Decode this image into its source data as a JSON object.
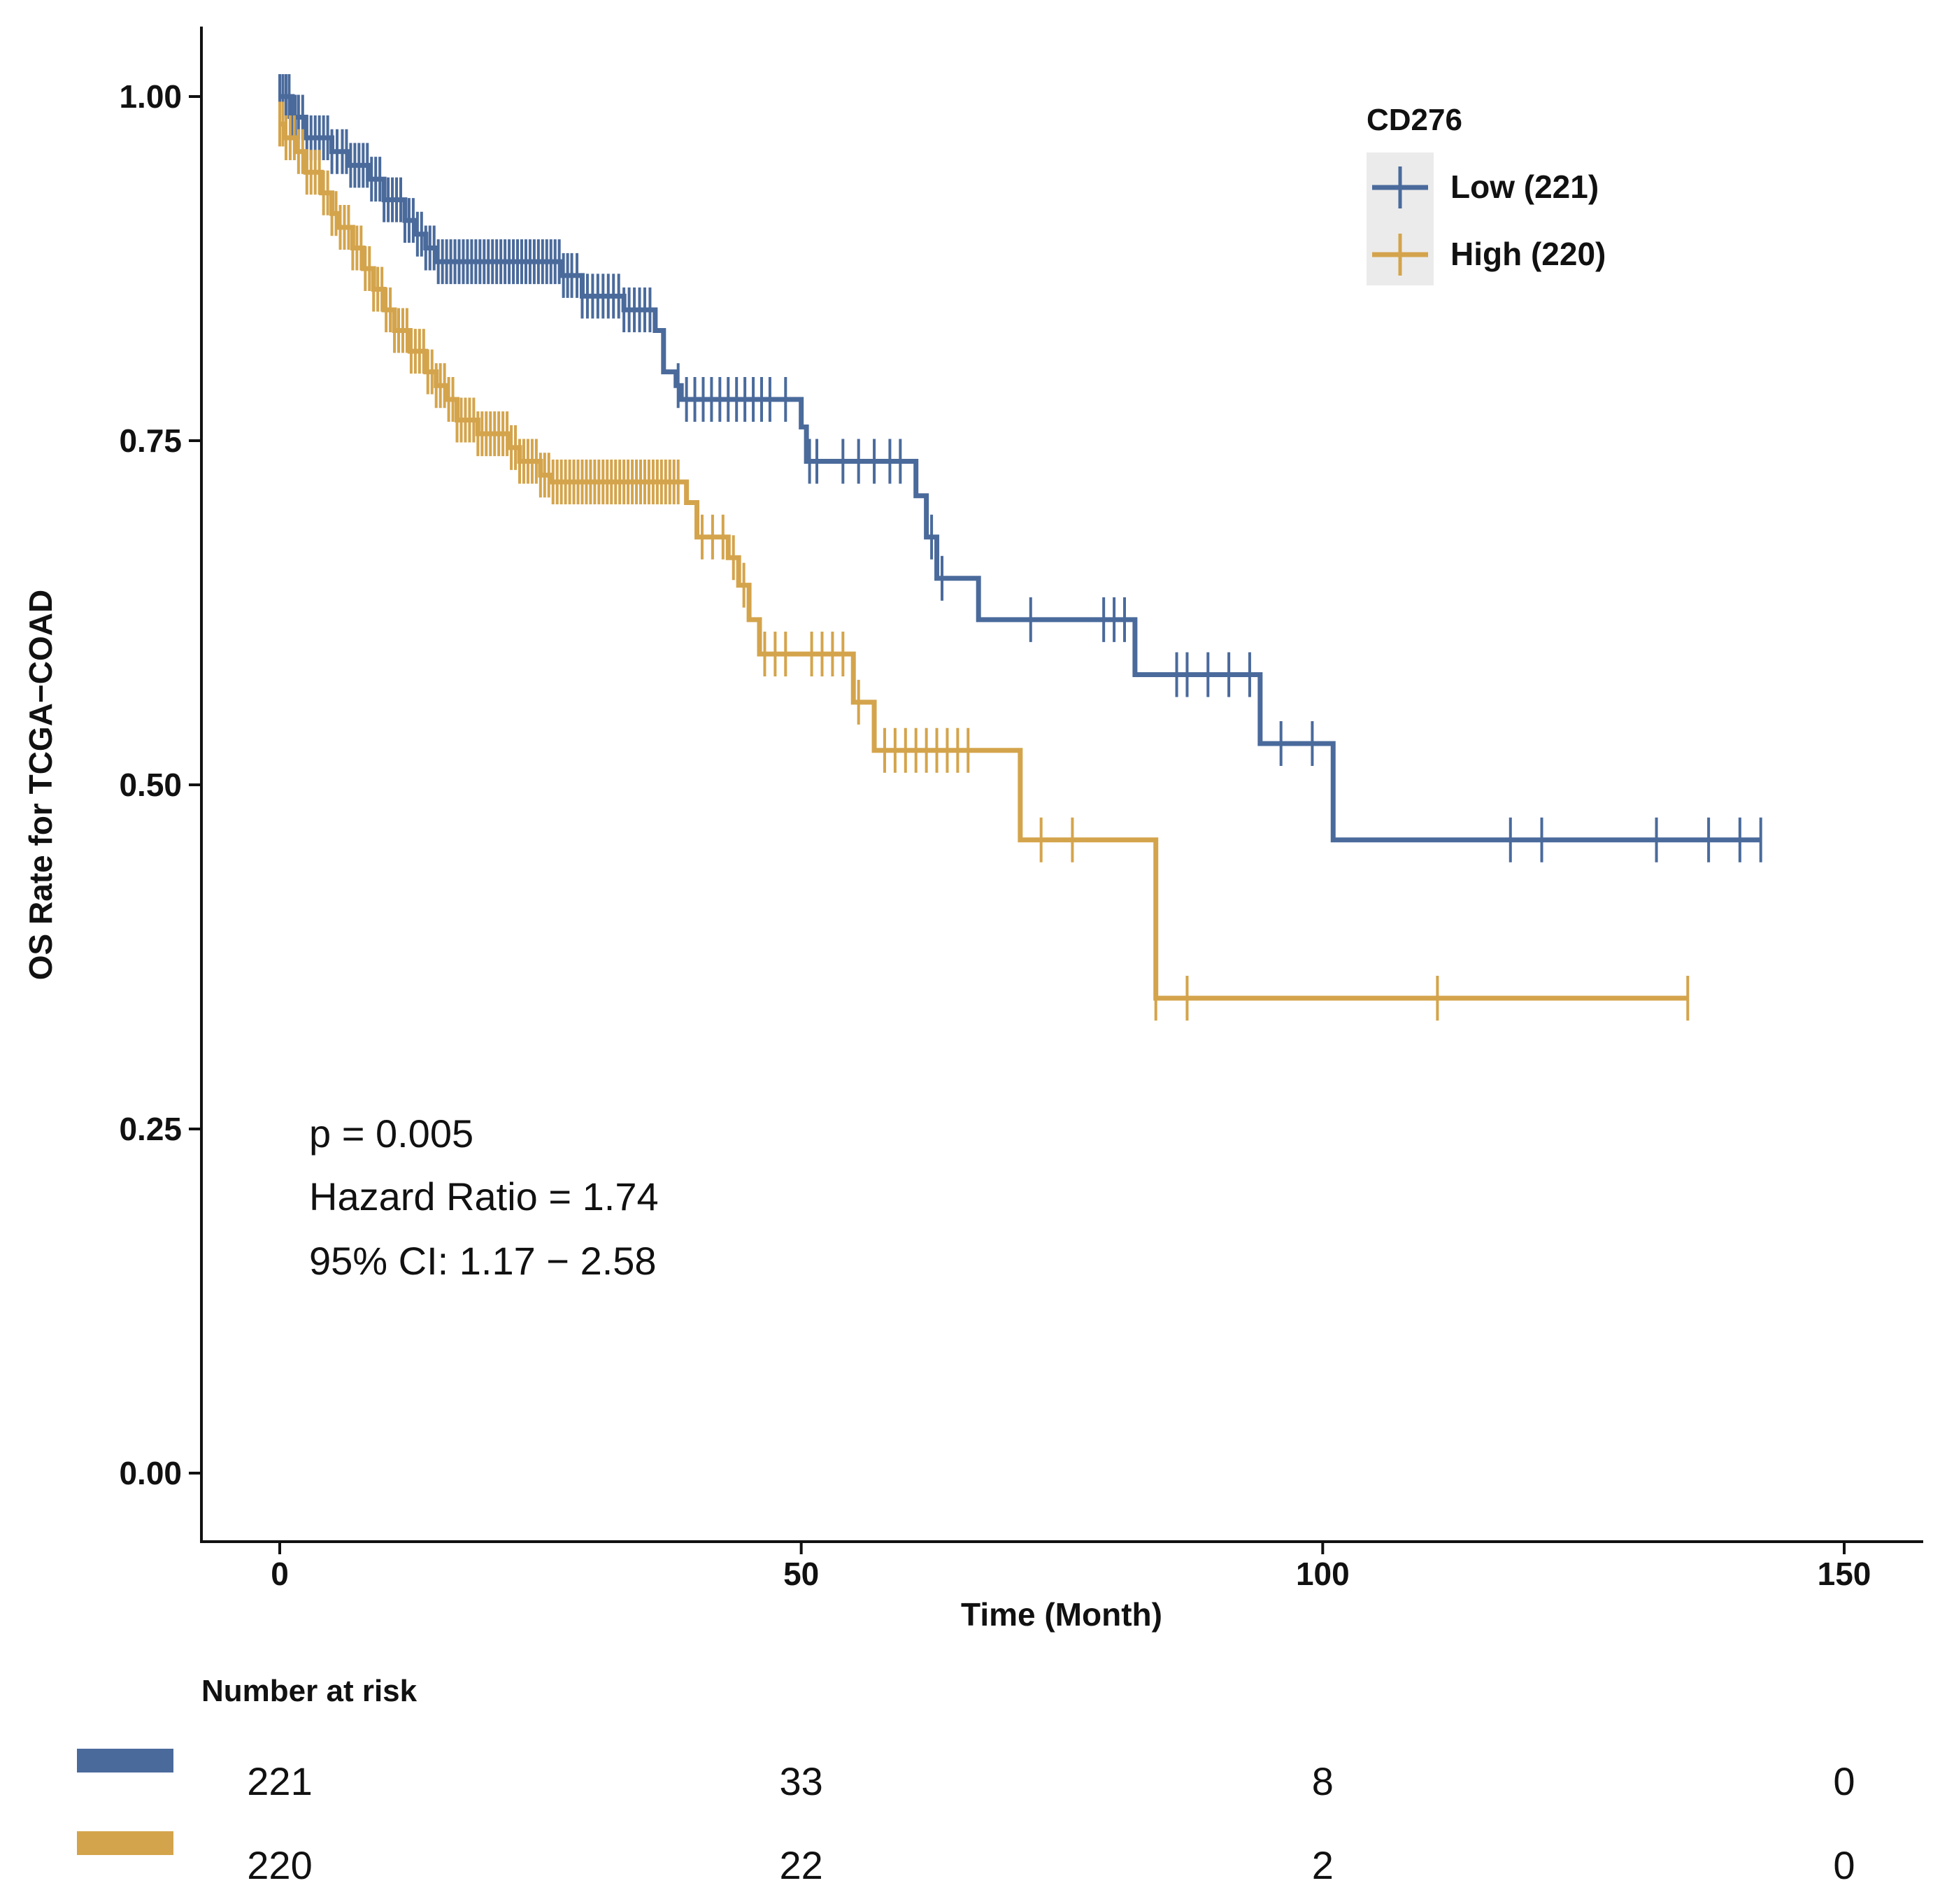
{
  "chart_data": {
    "type": "kaplan-meier",
    "ylabel": "OS Rate for TCGA−COAD",
    "xlabel": "Time (Month)",
    "xlim": [
      -6,
      156
    ],
    "ylim": [
      -0.05,
      1.05
    ],
    "x_ticks": [
      0,
      50,
      100,
      150
    ],
    "x_tick_labels": [
      "0",
      "50",
      "100",
      "150"
    ],
    "y_ticks": [
      0,
      0.25,
      0.5,
      0.75,
      1.0
    ],
    "y_tick_labels": [
      "0.00",
      "0.25",
      "0.50",
      "0.75",
      "1.00"
    ],
    "grid": false,
    "legend": {
      "title": "CD276",
      "position": "top-right",
      "labels": [
        "Low (221)",
        "High (220)"
      ]
    },
    "annotations": [
      "p = 0.005",
      "Hazard Ratio = 1.74",
      "95% CI: 1.17 − 2.58"
    ],
    "series": [
      {
        "name": "Low (221)",
        "color": "#4A6A9B",
        "steps": [
          [
            0,
            1.0
          ],
          [
            1.2,
            0.985
          ],
          [
            2.5,
            0.97
          ],
          [
            5,
            0.96
          ],
          [
            6.5,
            0.95
          ],
          [
            8.5,
            0.94
          ],
          [
            10,
            0.925
          ],
          [
            12,
            0.91
          ],
          [
            13,
            0.9
          ],
          [
            14,
            0.89
          ],
          [
            15,
            0.88
          ],
          [
            27,
            0.87
          ],
          [
            29,
            0.855
          ],
          [
            33,
            0.845
          ],
          [
            36,
            0.83
          ],
          [
            36.8,
            0.8
          ],
          [
            38,
            0.79
          ],
          [
            38.5,
            0.78
          ],
          [
            50,
            0.76
          ],
          [
            50.5,
            0.735
          ],
          [
            61,
            0.71
          ],
          [
            62,
            0.68
          ],
          [
            63,
            0.65
          ],
          [
            67,
            0.62
          ],
          [
            82,
            0.58
          ],
          [
            94,
            0.53
          ],
          [
            101,
            0.46
          ],
          [
            142,
            0.46
          ]
        ],
        "censors": [
          0,
          0.3,
          0.6,
          0.9,
          1.2,
          1.5,
          1.8,
          2.2,
          2.6,
          3,
          3.4,
          3.8,
          4.2,
          4.6,
          5,
          5.5,
          6,
          6.4,
          6.8,
          7.2,
          7.6,
          8,
          8.4,
          8.8,
          9.2,
          9.6,
          10,
          10.4,
          10.8,
          11.2,
          11.6,
          12,
          12.4,
          12.8,
          13.2,
          13.6,
          14,
          14.4,
          14.8,
          15.2,
          15.6,
          16,
          16.4,
          16.8,
          17.2,
          17.6,
          18,
          18.4,
          18.8,
          19.2,
          19.6,
          20,
          20.4,
          20.8,
          21.2,
          21.6,
          22,
          22.4,
          22.8,
          23.2,
          23.6,
          24,
          24.4,
          24.8,
          25.2,
          25.6,
          26,
          26.4,
          26.8,
          27.2,
          27.6,
          28,
          28.5,
          29,
          29.5,
          30,
          30.5,
          31,
          31.5,
          32,
          32.5,
          33,
          33.5,
          34,
          34.5,
          35,
          35.5,
          38.2,
          39,
          39.8,
          40.6,
          41.4,
          42.2,
          43,
          43.8,
          44.6,
          45.4,
          46.2,
          47,
          48.5,
          50.8,
          51.5,
          54,
          55.5,
          57,
          58.5,
          59.5,
          62.5,
          63.5,
          72,
          79,
          80,
          81,
          86,
          87,
          89,
          91,
          93,
          96,
          99,
          118,
          121,
          132,
          137,
          140,
          142
        ]
      },
      {
        "name": "High (220)",
        "color": "#D4A44C",
        "steps": [
          [
            0,
            0.98
          ],
          [
            0.5,
            0.97
          ],
          [
            1.5,
            0.96
          ],
          [
            2.5,
            0.945
          ],
          [
            4,
            0.93
          ],
          [
            5,
            0.915
          ],
          [
            5.5,
            0.905
          ],
          [
            7,
            0.89
          ],
          [
            8,
            0.875
          ],
          [
            9,
            0.86
          ],
          [
            10,
            0.845
          ],
          [
            11,
            0.83
          ],
          [
            12.5,
            0.815
          ],
          [
            14,
            0.8
          ],
          [
            15,
            0.79
          ],
          [
            16,
            0.78
          ],
          [
            17,
            0.765
          ],
          [
            19,
            0.755
          ],
          [
            22,
            0.745
          ],
          [
            23,
            0.735
          ],
          [
            25,
            0.725
          ],
          [
            26,
            0.72
          ],
          [
            39,
            0.705
          ],
          [
            40,
            0.68
          ],
          [
            43,
            0.665
          ],
          [
            44,
            0.645
          ],
          [
            45,
            0.62
          ],
          [
            46,
            0.595
          ],
          [
            55,
            0.56
          ],
          [
            57,
            0.525
          ],
          [
            71,
            0.46
          ],
          [
            84,
            0.345
          ],
          [
            135,
            0.345
          ]
        ],
        "censors": [
          0,
          0.3,
          0.6,
          1,
          1.4,
          1.8,
          2.2,
          2.6,
          3,
          3.4,
          3.8,
          4.2,
          4.6,
          5,
          5.4,
          5.8,
          6.2,
          6.6,
          7,
          7.4,
          7.8,
          8.2,
          8.6,
          9,
          9.4,
          9.8,
          10.2,
          10.6,
          11,
          11.4,
          11.8,
          12.2,
          12.6,
          13,
          13.4,
          13.8,
          14.2,
          14.6,
          15,
          15.4,
          15.8,
          16.2,
          16.6,
          17,
          17.4,
          17.8,
          18.2,
          18.6,
          19,
          19.4,
          19.8,
          20.2,
          20.6,
          21,
          21.4,
          21.8,
          22.2,
          22.6,
          23,
          23.4,
          23.8,
          24.2,
          24.6,
          25,
          25.4,
          25.8,
          26.2,
          26.6,
          27,
          27.4,
          27.8,
          28.2,
          28.6,
          29,
          29.4,
          29.8,
          30.2,
          30.6,
          31,
          31.4,
          31.8,
          32.2,
          32.6,
          33,
          33.4,
          33.8,
          34.2,
          34.6,
          35,
          35.4,
          35.8,
          36.2,
          36.6,
          37,
          37.4,
          37.8,
          38.2,
          40.5,
          41.5,
          42.5,
          43.5,
          44.5,
          46.5,
          47.5,
          48.5,
          51,
          52,
          53,
          54,
          55.5,
          58,
          59,
          60,
          61,
          62,
          63,
          64,
          65,
          66,
          73,
          76,
          84,
          87,
          111,
          135
        ]
      }
    ],
    "risk_table": {
      "title": "Number at risk",
      "times": [
        0,
        50,
        100,
        150
      ],
      "rows": [
        {
          "name": "Low",
          "color": "#4A6A9B",
          "values": [
            "221",
            "33",
            "8",
            "0"
          ]
        },
        {
          "name": "High",
          "color": "#D4A44C",
          "values": [
            "220",
            "22",
            "2",
            "0"
          ]
        }
      ]
    }
  }
}
